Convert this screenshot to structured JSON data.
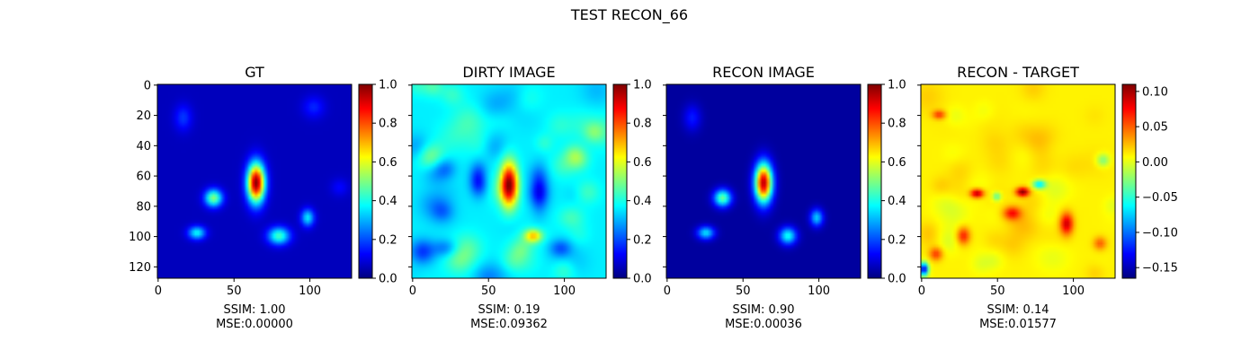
{
  "figure_title": "TEST RECON_66",
  "colors": {
    "colormap": "jet",
    "jet_stops": [
      "#00007f",
      "#0000ff",
      "#007fff",
      "#00ffff",
      "#7fff7f",
      "#ffff00",
      "#ff7f00",
      "#ff0000",
      "#7f0000"
    ]
  },
  "chart_data": [
    {
      "type": "heatmap",
      "title": "GT",
      "image_size": [
        128,
        128
      ],
      "xticks": [
        0,
        50,
        100
      ],
      "yticks": [
        0,
        20,
        40,
        60,
        80,
        100,
        120
      ],
      "show_ytick_labels": true,
      "xlabel_lines": [
        "SSIM: 1.00",
        "MSE:0.00000"
      ],
      "colorbar": {
        "range": [
          0.0,
          1.0
        ],
        "ticks": [
          "0.0",
          "0.2",
          "0.4",
          "0.6",
          "0.8",
          "1.0"
        ]
      },
      "background_value": 0.06,
      "features": [
        {
          "x": 65,
          "y": 65,
          "sx": 4,
          "sy": 9,
          "amp": 0.94
        },
        {
          "x": 37,
          "y": 75,
          "sx": 4,
          "sy": 4,
          "amp": 0.45
        },
        {
          "x": 26,
          "y": 98,
          "sx": 4,
          "sy": 3,
          "amp": 0.32
        },
        {
          "x": 80,
          "y": 100,
          "sx": 5,
          "sy": 4,
          "amp": 0.38
        },
        {
          "x": 99,
          "y": 88,
          "sx": 3,
          "sy": 4,
          "amp": 0.3
        },
        {
          "x": 17,
          "y": 22,
          "sx": 4,
          "sy": 6,
          "amp": 0.12
        },
        {
          "x": 103,
          "y": 15,
          "sx": 5,
          "sy": 5,
          "amp": 0.1
        },
        {
          "x": 120,
          "y": 68,
          "sx": 4,
          "sy": 4,
          "amp": 0.07
        }
      ]
    },
    {
      "type": "heatmap",
      "title": "DIRTY IMAGE",
      "image_size": [
        128,
        128
      ],
      "xticks": [
        0,
        50,
        100
      ],
      "yticks": [
        0,
        20,
        40,
        60,
        80,
        100,
        120
      ],
      "show_ytick_labels": false,
      "xlabel_lines": [
        "SSIM: 0.19",
        "MSE:0.09362"
      ],
      "colorbar": {
        "range": [
          0.0,
          1.0
        ],
        "ticks": [
          "0.0",
          "0.2",
          "0.4",
          "0.6",
          "0.8",
          "1.0"
        ]
      },
      "background_value": 0.36,
      "texture": {
        "amp": 0.1,
        "seed": 7
      },
      "features": [
        {
          "x": 64,
          "y": 66,
          "sx": 4,
          "sy": 10,
          "amp": 0.62
        },
        {
          "x": 44,
          "y": 63,
          "sx": 4,
          "sy": 7,
          "amp": -0.27
        },
        {
          "x": 84,
          "y": 70,
          "sx": 4,
          "sy": 10,
          "amp": -0.2
        },
        {
          "x": 80,
          "y": 100,
          "sx": 4,
          "sy": 3,
          "amp": 0.3
        },
        {
          "x": 110,
          "y": 50,
          "sx": 5,
          "sy": 5,
          "amp": 0.1
        },
        {
          "x": 22,
          "y": 108,
          "sx": 6,
          "sy": 4,
          "amp": -0.12
        },
        {
          "x": 98,
          "y": 108,
          "sx": 5,
          "sy": 4,
          "amp": -0.14
        },
        {
          "x": 105,
          "y": 88,
          "sx": 6,
          "sy": 5,
          "amp": 0.08
        }
      ]
    },
    {
      "type": "heatmap",
      "title": "RECON IMAGE",
      "image_size": [
        128,
        128
      ],
      "xticks": [
        0,
        50,
        100
      ],
      "yticks": [
        0,
        20,
        40,
        60,
        80,
        100,
        120
      ],
      "show_ytick_labels": false,
      "xlabel_lines": [
        "SSIM: 0.90",
        "MSE:0.00036"
      ],
      "colorbar": {
        "range": [
          0.0,
          1.0
        ],
        "ticks": [
          "0.0",
          "0.2",
          "0.4",
          "0.6",
          "0.8",
          "1.0"
        ]
      },
      "background_value": 0.03,
      "features": [
        {
          "x": 64,
          "y": 65,
          "sx": 4,
          "sy": 9,
          "amp": 0.92
        },
        {
          "x": 37,
          "y": 75,
          "sx": 4,
          "sy": 4,
          "amp": 0.45
        },
        {
          "x": 26,
          "y": 98,
          "sx": 4,
          "sy": 3,
          "amp": 0.32
        },
        {
          "x": 80,
          "y": 100,
          "sx": 4,
          "sy": 4,
          "amp": 0.36
        },
        {
          "x": 99,
          "y": 88,
          "sx": 3,
          "sy": 4,
          "amp": 0.3
        },
        {
          "x": 17,
          "y": 22,
          "sx": 4,
          "sy": 6,
          "amp": 0.12
        }
      ]
    },
    {
      "type": "heatmap",
      "title": "RECON - TARGET",
      "image_size": [
        128,
        128
      ],
      "xticks": [
        0,
        50,
        100
      ],
      "yticks": [
        0,
        20,
        40,
        60,
        80,
        100,
        120
      ],
      "show_ytick_labels": false,
      "xlabel_lines": [
        "SSIM: 0.14",
        "MSE:0.01577"
      ],
      "colorbar": {
        "range": [
          -0.165,
          0.11
        ],
        "ticks": [
          "0.10",
          "0.05",
          "0.00",
          "−0.05",
          "−0.10",
          "−0.15"
        ],
        "tick_values": [
          0.1,
          0.05,
          0.0,
          -0.05,
          -0.1,
          -0.15
        ]
      },
      "background_value": 0.01,
      "texture": {
        "amp": 0.012,
        "seed": 3
      },
      "features": [
        {
          "x": 37,
          "y": 72,
          "sx": 3,
          "sy": 2,
          "amp": 0.09
        },
        {
          "x": 67,
          "y": 71,
          "sx": 3,
          "sy": 2,
          "amp": 0.1
        },
        {
          "x": 60,
          "y": 85,
          "sx": 4,
          "sy": 3,
          "amp": 0.06
        },
        {
          "x": 96,
          "y": 92,
          "sx": 3,
          "sy": 5,
          "amp": 0.08
        },
        {
          "x": 28,
          "y": 100,
          "sx": 3,
          "sy": 4,
          "amp": 0.06
        },
        {
          "x": 10,
          "y": 112,
          "sx": 3,
          "sy": 3,
          "amp": 0.05
        },
        {
          "x": 78,
          "y": 66,
          "sx": 3,
          "sy": 2,
          "amp": -0.08
        },
        {
          "x": 50,
          "y": 74,
          "sx": 2,
          "sy": 2,
          "amp": -0.05
        },
        {
          "x": 2,
          "y": 122,
          "sx": 2,
          "sy": 3,
          "amp": -0.15
        },
        {
          "x": 12,
          "y": 20,
          "sx": 3,
          "sy": 2,
          "amp": 0.05
        },
        {
          "x": 118,
          "y": 105,
          "sx": 3,
          "sy": 3,
          "amp": 0.04
        },
        {
          "x": 120,
          "y": 50,
          "sx": 3,
          "sy": 3,
          "amp": -0.04
        }
      ]
    }
  ]
}
